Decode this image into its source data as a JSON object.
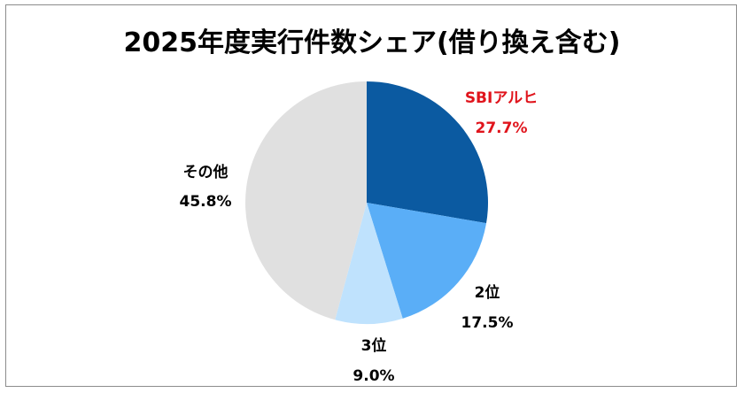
{
  "chart_data": {
    "type": "pie",
    "title": "2025年度実行件数シェア(借り換え含む)",
    "categories": [
      "SBIアルヒ",
      "2位",
      "3位",
      "その他"
    ],
    "values": [
      27.7,
      17.5,
      9.0,
      45.8
    ],
    "value_labels": [
      "27.7%",
      "17.5%",
      "9.0%",
      "45.8%"
    ],
    "colors": [
      "#0b5aa1",
      "#5aaef7",
      "#bfe2fd",
      "#e0e0e0"
    ],
    "label_colors": [
      "#e0141c",
      "#000000",
      "#000000",
      "#000000"
    ],
    "start_angle": "12 o'clock",
    "direction": "clockwise",
    "legend": "none"
  }
}
